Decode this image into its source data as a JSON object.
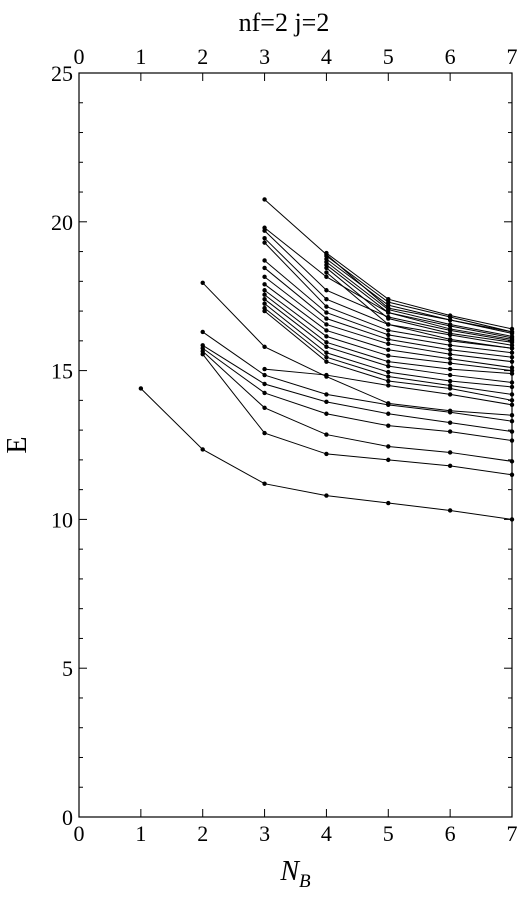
{
  "chart_data": {
    "type": "line",
    "title": "nf=2   j=2",
    "xlabel": "N",
    "xlabel_sub": "B",
    "ylabel": "E",
    "xlim": [
      0,
      7
    ],
    "ylim": [
      0,
      25
    ],
    "x_ticks": [
      0,
      1,
      2,
      3,
      4,
      5,
      6,
      7
    ],
    "y_ticks": [
      0,
      5,
      10,
      15,
      20,
      25
    ],
    "top_axis_ticks": [
      0,
      1,
      2,
      3,
      4,
      5,
      6,
      7
    ],
    "grid": false,
    "legend": "none",
    "line_color": "#000000",
    "series": [
      {
        "x": [
          1,
          2,
          3,
          4,
          5,
          6,
          7
        ],
        "y": [
          14.4,
          12.35,
          11.2,
          10.8,
          10.55,
          10.3,
          10.0
        ]
      },
      {
        "x": [
          2,
          3,
          4,
          5,
          6,
          7
        ],
        "y": [
          15.55,
          12.9,
          12.2,
          12.0,
          11.8,
          11.5
        ]
      },
      {
        "x": [
          2,
          3,
          4,
          5,
          6,
          7
        ],
        "y": [
          15.65,
          13.75,
          12.85,
          12.45,
          12.25,
          11.95
        ]
      },
      {
        "x": [
          2,
          3,
          4,
          5,
          6,
          7
        ],
        "y": [
          15.75,
          14.25,
          13.55,
          13.15,
          12.95,
          12.65
        ]
      },
      {
        "x": [
          2,
          3,
          4,
          5,
          6,
          7
        ],
        "y": [
          15.85,
          14.55,
          13.95,
          13.55,
          13.25,
          12.95
        ]
      },
      {
        "x": [
          2,
          3,
          4,
          5,
          6,
          7
        ],
        "y": [
          16.3,
          14.85,
          14.2,
          13.85,
          13.6,
          13.3
        ]
      },
      {
        "x": [
          2,
          3,
          4,
          5,
          6,
          7
        ],
        "y": [
          17.95,
          15.8,
          14.8,
          13.9,
          13.65,
          13.5
        ]
      },
      {
        "x": [
          3,
          4,
          5,
          6,
          7
        ],
        "y": [
          15.05,
          14.85,
          14.5,
          14.2,
          13.85
        ]
      },
      {
        "x": [
          3,
          4,
          5,
          6,
          7
        ],
        "y": [
          17.0,
          15.3,
          14.65,
          14.4,
          14.0
        ]
      },
      {
        "x": [
          3,
          4,
          5,
          6,
          7
        ],
        "y": [
          17.1,
          15.45,
          14.8,
          14.5,
          14.2
        ]
      },
      {
        "x": [
          3,
          4,
          5,
          6,
          7
        ],
        "y": [
          17.25,
          15.6,
          14.95,
          14.65,
          14.45
        ]
      },
      {
        "x": [
          3,
          4,
          5,
          6,
          7
        ],
        "y": [
          17.4,
          15.8,
          15.15,
          14.85,
          14.6
        ]
      },
      {
        "x": [
          3,
          4,
          5,
          6,
          7
        ],
        "y": [
          17.55,
          15.95,
          15.3,
          15.05,
          14.9
        ]
      },
      {
        "x": [
          3,
          4,
          5,
          6,
          7
        ],
        "y": [
          17.7,
          16.15,
          15.5,
          15.25,
          15.0
        ]
      },
      {
        "x": [
          3,
          4,
          5,
          6,
          7
        ],
        "y": [
          17.9,
          16.35,
          15.7,
          15.4,
          15.1
        ]
      },
      {
        "x": [
          3,
          4,
          5,
          6,
          7
        ],
        "y": [
          18.15,
          16.55,
          15.9,
          15.55,
          15.3
        ]
      },
      {
        "x": [
          3,
          4,
          5,
          6,
          7
        ],
        "y": [
          18.45,
          16.75,
          16.05,
          15.7,
          15.45
        ]
      },
      {
        "x": [
          3,
          4,
          5,
          6,
          7
        ],
        "y": [
          18.7,
          16.95,
          16.2,
          15.85,
          15.6
        ]
      },
      {
        "x": [
          3,
          4,
          5,
          6,
          7
        ],
        "y": [
          19.3,
          17.15,
          16.35,
          16.0,
          15.75
        ]
      },
      {
        "x": [
          3,
          4,
          5,
          6,
          7
        ],
        "y": [
          19.45,
          17.4,
          16.55,
          16.2,
          15.85
        ]
      },
      {
        "x": [
          3,
          4,
          5,
          6,
          7
        ],
        "y": [
          19.7,
          17.7,
          16.8,
          16.35,
          16.0
        ]
      },
      {
        "x": [
          3,
          4,
          5,
          6,
          7
        ],
        "y": [
          19.8,
          18.15,
          16.95,
          16.5,
          16.1
        ]
      },
      {
        "x": [
          3,
          4,
          5,
          6,
          7
        ],
        "y": [
          20.75,
          18.9,
          17.1,
          16.7,
          16.3
        ]
      },
      {
        "x": [
          4,
          5,
          6,
          7
        ],
        "y": [
          18.3,
          16.55,
          16.05,
          15.75
        ]
      },
      {
        "x": [
          4,
          5,
          6,
          7
        ],
        "y": [
          18.45,
          16.75,
          16.25,
          15.95
        ]
      },
      {
        "x": [
          4,
          5,
          6,
          7
        ],
        "y": [
          18.55,
          16.95,
          16.4,
          16.05
        ]
      },
      {
        "x": [
          4,
          5,
          6,
          7
        ],
        "y": [
          18.65,
          17.05,
          16.55,
          16.15
        ]
      },
      {
        "x": [
          4,
          5,
          6,
          7
        ],
        "y": [
          18.75,
          17.2,
          16.7,
          16.25
        ]
      },
      {
        "x": [
          4,
          5,
          6,
          7
        ],
        "y": [
          18.85,
          17.3,
          16.8,
          16.3
        ]
      },
      {
        "x": [
          4,
          5,
          6,
          7
        ],
        "y": [
          18.95,
          17.4,
          16.85,
          16.4
        ]
      }
    ]
  }
}
